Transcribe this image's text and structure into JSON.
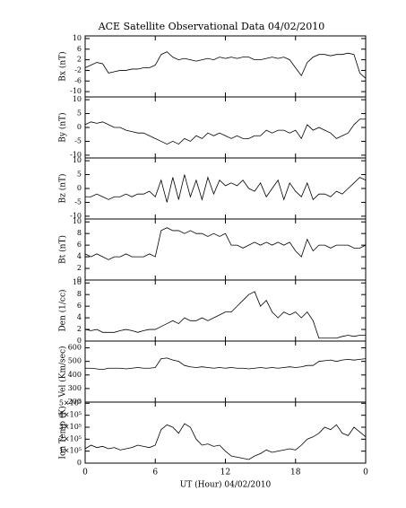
{
  "chart_data": [
    {
      "type": "line",
      "title": "ACE Satellite Observational Data  04/02/2010",
      "ylabel": "Bx (nT)",
      "color": "#000000",
      "x": [
        0,
        0.5,
        1,
        1.5,
        2,
        2.5,
        3,
        3.5,
        4,
        4.5,
        5,
        5.5,
        6,
        6.5,
        7,
        7.5,
        8,
        8.5,
        9,
        9.5,
        10,
        10.5,
        11,
        11.5,
        12,
        12.5,
        13,
        13.5,
        14,
        14.5,
        15,
        15.5,
        16,
        16.5,
        17,
        17.5,
        18,
        18.5,
        19,
        19.5,
        20,
        20.5,
        21,
        21.5,
        22,
        22.5,
        23,
        23.5,
        24
      ],
      "values": [
        -1,
        0,
        1,
        0.5,
        -3,
        -2.5,
        -2,
        -2,
        -1.5,
        -1.5,
        -1,
        -1,
        0,
        4,
        5,
        3,
        2,
        2.5,
        2,
        1.5,
        2,
        2.5,
        2,
        3,
        2.5,
        3,
        2.5,
        3,
        3,
        2,
        2,
        2.5,
        3,
        2.5,
        3,
        2,
        -1,
        -4,
        1,
        3,
        4,
        4,
        3.5,
        4,
        4,
        4.5,
        4,
        -3,
        -5
      ],
      "xlim": [
        0,
        24
      ],
      "ylim": [
        -12,
        11
      ],
      "yticks": [
        -10,
        -6,
        -2,
        2,
        6,
        10
      ]
    },
    {
      "type": "line",
      "ylabel": "By (nT)",
      "color": "#000000",
      "x": [
        0,
        0.5,
        1,
        1.5,
        2,
        2.5,
        3,
        3.5,
        4,
        4.5,
        5,
        5.5,
        6,
        6.5,
        7,
        7.5,
        8,
        8.5,
        9,
        9.5,
        10,
        10.5,
        11,
        11.5,
        12,
        12.5,
        13,
        13.5,
        14,
        14.5,
        15,
        15.5,
        16,
        16.5,
        17,
        17.5,
        18,
        18.5,
        19,
        19.5,
        20,
        20.5,
        21,
        21.5,
        22,
        22.5,
        23,
        23.5,
        24
      ],
      "values": [
        1,
        2,
        1.5,
        2,
        1,
        0,
        0,
        -1,
        -1.5,
        -2,
        -2,
        -3,
        -4,
        -5,
        -6,
        -5,
        -6,
        -4,
        -5,
        -3,
        -4,
        -2,
        -3,
        -2,
        -3,
        -4,
        -3,
        -4,
        -4,
        -3,
        -3,
        -1,
        -2,
        -1,
        -1,
        -2,
        -1,
        -4,
        1,
        -1,
        0,
        -1,
        -2,
        -4,
        -3,
        -2,
        1,
        3,
        3
      ],
      "xlim": [
        0,
        24
      ],
      "ylim": [
        -11,
        11
      ],
      "yticks": [
        -10,
        -5,
        0,
        5,
        10
      ]
    },
    {
      "type": "line",
      "ylabel": "Bz (nT)",
      "color": "#000000",
      "x": [
        0,
        0.5,
        1,
        1.5,
        2,
        2.5,
        3,
        3.5,
        4,
        4.5,
        5,
        5.5,
        6,
        6.5,
        7,
        7.5,
        8,
        8.5,
        9,
        9.5,
        10,
        10.5,
        11,
        11.5,
        12,
        12.5,
        13,
        13.5,
        14,
        14.5,
        15,
        15.5,
        16,
        16.5,
        17,
        17.5,
        18,
        18.5,
        19,
        19.5,
        20,
        20.5,
        21,
        21.5,
        22,
        22.5,
        23,
        23.5,
        24
      ],
      "values": [
        -3,
        -3,
        -2,
        -3,
        -4,
        -3,
        -3,
        -2,
        -3,
        -2,
        -2,
        -1,
        -3,
        3,
        -5,
        4,
        -4,
        5,
        -3,
        3,
        -4,
        4,
        -2,
        3,
        1,
        2,
        1,
        3,
        0,
        -1,
        2,
        -3,
        0,
        3,
        -4,
        2,
        -1,
        -3,
        2,
        -4,
        -2,
        -2,
        -3,
        -1,
        -2,
        0,
        2,
        4,
        3
      ],
      "xlim": [
        0,
        24
      ],
      "ylim": [
        -11,
        11
      ],
      "yticks": [
        -10,
        -5,
        0,
        5,
        10
      ]
    },
    {
      "type": "line",
      "ylabel": "Bt (nT)",
      "color": "#000000",
      "x": [
        0,
        0.5,
        1,
        1.5,
        2,
        2.5,
        3,
        3.5,
        4,
        4.5,
        5,
        5.5,
        6,
        6.5,
        7,
        7.5,
        8,
        8.5,
        9,
        9.5,
        10,
        10.5,
        11,
        11.5,
        12,
        12.5,
        13,
        13.5,
        14,
        14.5,
        15,
        15.5,
        16,
        16.5,
        17,
        17.5,
        18,
        18.5,
        19,
        19.5,
        20,
        20.5,
        21,
        21.5,
        22,
        22.5,
        23,
        23.5,
        24
      ],
      "values": [
        4.5,
        4,
        4.5,
        4,
        3.5,
        4,
        4,
        4.5,
        4,
        4,
        4,
        4.5,
        4,
        8.5,
        9,
        8.5,
        8.5,
        8,
        8.5,
        8,
        8,
        7.5,
        8,
        7.5,
        8,
        6,
        6,
        5.5,
        6,
        6.5,
        6,
        6.5,
        6,
        6.5,
        6,
        6.5,
        5,
        4,
        7,
        5,
        6,
        6,
        5.5,
        6,
        6,
        6,
        5.5,
        5.5,
        6
      ],
      "xlim": [
        0,
        24
      ],
      "ylim": [
        0,
        10.5
      ],
      "yticks": [
        0,
        2,
        4,
        6,
        8,
        10
      ]
    },
    {
      "type": "line",
      "ylabel": "Den (1/cc)",
      "color": "#000000",
      "x": [
        0,
        0.5,
        1,
        1.5,
        2,
        2.5,
        3,
        3.5,
        4,
        4.5,
        5,
        5.5,
        6,
        6.5,
        7,
        7.5,
        8,
        8.5,
        9,
        9.5,
        10,
        10.5,
        11,
        11.5,
        12,
        12.5,
        13,
        13.5,
        14,
        14.5,
        15,
        15.5,
        16,
        16.5,
        17,
        17.5,
        18,
        18.5,
        19,
        19.5,
        20,
        20.5,
        21,
        21.5,
        22,
        22.5,
        23,
        23.5,
        24
      ],
      "values": [
        2,
        1.8,
        2,
        1.5,
        1.5,
        1.5,
        1.8,
        2,
        1.8,
        1.5,
        1.8,
        2,
        2,
        2.5,
        3,
        3.5,
        3,
        4,
        3.5,
        3.5,
        4,
        3.5,
        4,
        4.5,
        5,
        5,
        6,
        7,
        8,
        8.5,
        6,
        7,
        5,
        4,
        5,
        4.5,
        5,
        4,
        5,
        3.5,
        0.5,
        0.5,
        0.5,
        0.5,
        0.8,
        1,
        0.8,
        1,
        1
      ],
      "xlim": [
        0,
        24
      ],
      "ylim": [
        0,
        10.5
      ],
      "yticks": [
        0,
        2,
        4,
        6,
        8,
        10
      ]
    },
    {
      "type": "line",
      "ylabel": "Vel (Km/sec)",
      "color": "#000000",
      "x": [
        0,
        0.5,
        1,
        1.5,
        2,
        2.5,
        3,
        3.5,
        4,
        4.5,
        5,
        5.5,
        6,
        6.5,
        7,
        7.5,
        8,
        8.5,
        9,
        9.5,
        10,
        10.5,
        11,
        11.5,
        12,
        12.5,
        13,
        13.5,
        14,
        14.5,
        15,
        15.5,
        16,
        16.5,
        17,
        17.5,
        18,
        18.5,
        19,
        19.5,
        20,
        20.5,
        21,
        21.5,
        22,
        22.5,
        23,
        23.5,
        24
      ],
      "values": [
        450,
        450,
        445,
        440,
        450,
        450,
        450,
        445,
        450,
        455,
        450,
        450,
        455,
        520,
        525,
        510,
        500,
        470,
        460,
        455,
        460,
        455,
        450,
        455,
        450,
        455,
        450,
        450,
        445,
        450,
        455,
        450,
        455,
        450,
        455,
        460,
        455,
        460,
        470,
        470,
        500,
        505,
        510,
        500,
        510,
        515,
        510,
        515,
        520
      ],
      "xlim": [
        0,
        24
      ],
      "ylim": [
        200,
        650
      ],
      "yticks": [
        200,
        300,
        400,
        500,
        600
      ]
    },
    {
      "type": "line",
      "ylabel": "Ion Temp (K)",
      "xlabel": "UT (Hour)  04/02/2010",
      "color": "#000000",
      "x": [
        0,
        0.5,
        1,
        1.5,
        2,
        2.5,
        3,
        3.5,
        4,
        4.5,
        5,
        5.5,
        6,
        6.5,
        7,
        7.5,
        8,
        8.5,
        9,
        9.5,
        10,
        10.5,
        11,
        11.5,
        12,
        12.5,
        13,
        13.5,
        14,
        14.5,
        15,
        15.5,
        16,
        16.5,
        17,
        17.5,
        18,
        18.5,
        19,
        19.5,
        20,
        20.5,
        21,
        21.5,
        22,
        22.5,
        23,
        23.5,
        24
      ],
      "values": [
        120000,
        150000,
        130000,
        140000,
        120000,
        130000,
        110000,
        120000,
        130000,
        150000,
        140000,
        130000,
        150000,
        280000,
        320000,
        300000,
        250000,
        330000,
        300000,
        200000,
        150000,
        160000,
        140000,
        150000,
        100000,
        60000,
        50000,
        40000,
        30000,
        60000,
        80000,
        110000,
        90000,
        100000,
        110000,
        120000,
        110000,
        150000,
        200000,
        220000,
        250000,
        300000,
        280000,
        320000,
        250000,
        230000,
        300000,
        260000,
        220000
      ],
      "xlim": [
        0,
        24
      ],
      "ylim": [
        0,
        510000
      ],
      "yticks": [
        0,
        {
          "value": 100000,
          "label": "1×10⁵"
        },
        {
          "value": 200000,
          "label": "2×10⁵"
        },
        {
          "value": 300000,
          "label": "3×10⁵"
        },
        {
          "value": 400000,
          "label": "4×10⁵"
        },
        {
          "value": 500000,
          "label": "5×10⁵"
        }
      ],
      "xticks": [
        0,
        6,
        12,
        18,
        {
          "value": 24,
          "label": "0"
        }
      ]
    }
  ]
}
